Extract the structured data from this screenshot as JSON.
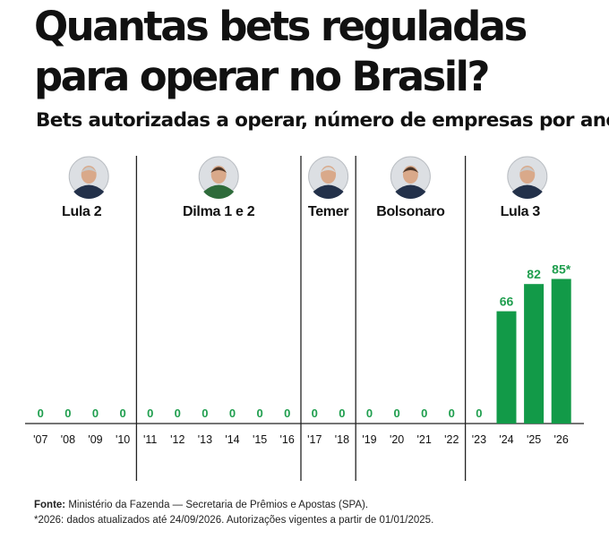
{
  "header": {
    "title_line1": "Quantas bets reguladas",
    "title_line2": "para operar no Brasil?",
    "subtitle": "Bets autorizadas a operar, número de empresas por ano"
  },
  "chart_data": {
    "type": "bar",
    "title": "Quantas bets reguladas para operar no Brasil?",
    "subtitle": "Bets autorizadas a operar, número de empresas por ano",
    "xlabel": "",
    "ylabel": "",
    "categories": [
      "'07",
      "'08",
      "'09",
      "'10",
      "'11",
      "'12",
      "'13",
      "'14",
      "'15",
      "'16",
      "'17",
      "'18",
      "'19",
      "'20",
      "'21",
      "'22",
      "'23",
      "'24",
      "'25",
      "'26"
    ],
    "values": [
      0,
      0,
      0,
      0,
      0,
      0,
      0,
      0,
      0,
      0,
      0,
      0,
      0,
      0,
      0,
      0,
      0,
      66,
      82,
      85
    ],
    "data_labels": [
      "0",
      "0",
      "0",
      "0",
      "0",
      "0",
      "0",
      "0",
      "0",
      "0",
      "0",
      "0",
      "0",
      "0",
      "0",
      "0",
      "0",
      "66",
      "82",
      "85*"
    ],
    "ylim": [
      0,
      90
    ],
    "grid": false,
    "bar_color": "#129a48",
    "label_color": "#1f9e4e",
    "periods": [
      {
        "name": "Lula 2",
        "start": 0,
        "end": 3,
        "portrait": "lula-portrait"
      },
      {
        "name": "Dilma 1 e 2",
        "start": 4,
        "end": 9,
        "portrait": "dilma-portrait"
      },
      {
        "name": "Temer",
        "start": 10,
        "end": 11,
        "portrait": "temer-portrait"
      },
      {
        "name": "Bolsonaro",
        "start": 12,
        "end": 15,
        "portrait": "bolsonaro-portrait"
      },
      {
        "name": "Lula 3",
        "start": 16,
        "end": 19,
        "portrait": "lula-portrait"
      }
    ]
  },
  "footer": {
    "source_label": "Fonte:",
    "source_text": " Ministério da Fazenda — Secretaria de Prêmios e Apostas (SPA).",
    "note": "*2026: dados atualizados até 24/09/2026. Autorizações vigentes a partir de 01/01/2025."
  }
}
